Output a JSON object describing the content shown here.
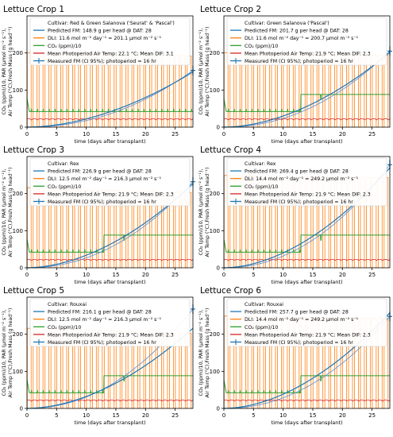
{
  "shared": {
    "xlabel": "time (days after transplant)",
    "ylabel_line1": "CO₂ (ppm)/10, PAR (μmol m⁻² s⁻¹),",
    "ylabel_line2": "Air Temp (°C),Fresh Mass (g head⁻¹)",
    "x_ticks": [
      "0",
      "5",
      "10",
      "15",
      "20",
      "25"
    ],
    "y_ticks": [
      "0",
      "100",
      "200"
    ],
    "colors": {
      "predicted": "#1f77b4",
      "par": "#ff7f0e",
      "co2": "#2ca02c",
      "temp": "#d62728",
      "measured": "#1f77b4"
    }
  },
  "chart_data": [
    {
      "type": "line",
      "title": "Lettuce Crop 1",
      "legend": [
        "Cultivar: Red & Green Salanova ('Seurat' & 'Pascal')",
        "Predicted FM: 148.9 g per head @ DAT: 28",
        "DLI: 11.6 mol m⁻² day⁻¹ = 201.1 μmol m⁻² s⁻¹",
        "CO₂ (ppm)/10",
        "Mean Photoperiod Air Temp: 22.1 °C; Mean DIF: 3.1",
        "Measured FM (CI 95%); photoperiod = 16 hr"
      ],
      "xlim": [
        0,
        28
      ],
      "ylim": [
        0,
        300
      ],
      "par_peak": [
        201,
        192
      ],
      "co2_base": 42,
      "co2_step": null,
      "temp": 21,
      "predicted_fm": 148.9,
      "measured": {
        "x": [
          28
        ],
        "y": [
          153
        ]
      }
    },
    {
      "type": "line",
      "title": "Lettuce Crop 2",
      "legend": [
        "Cultivar: Green Salanova ('Pascal')",
        "Predicted FM: 201.7 g per head @ DAT: 28",
        "DLI: 11.6 mol m⁻² day⁻¹ = 200.7 μmol m⁻² s⁻¹",
        "CO₂ (ppm)/10",
        "Mean Photoperiod Air Temp: 21.9 °C; Mean DIF: 2.3",
        "Measured FM (CI 95%); photoperiod = 16 hr"
      ],
      "xlim": [
        0,
        28
      ],
      "ylim": [
        0,
        300
      ],
      "par_peak": [
        201,
        194
      ],
      "co2_base": 42,
      "co2_step": [
        13,
        88
      ],
      "temp": 21,
      "predicted_fm": 201.7,
      "measured": {
        "x": [
          28
        ],
        "y": [
          205
        ]
      }
    },
    {
      "type": "line",
      "title": "Lettuce Crop 3",
      "legend": [
        "Cultivar: Rex",
        "Predicted FM: 226.9 g per head @ DAT: 28",
        "DLI: 12.5 mol m⁻² day⁻¹ = 216.3 μmol m⁻² s⁻¹",
        "CO₂ (ppm)/10",
        "Mean Photoperiod Air Temp: 21.9 °C; Mean DIF: 2.3",
        "Measured FM (CI 95%); photoperiod = 16 hr"
      ],
      "xlim": [
        0,
        28
      ],
      "ylim": [
        0,
        300
      ],
      "par_peak": [
        216,
        203
      ],
      "co2_base": 42,
      "co2_step": [
        13,
        88
      ],
      "temp": 21,
      "predicted_fm": 226.9,
      "measured": {
        "x": [
          28
        ],
        "y": [
          232
        ]
      }
    },
    {
      "type": "line",
      "title": "Lettuce Crop 4",
      "legend": [
        "Cultivar: Rex",
        "Predicted FM: 269.4 g per head @ DAT: 28",
        "DLI: 14.4 mol m⁻² day⁻¹ = 249.2 μmol m⁻² s⁻¹",
        "CO₂ (ppm)/10",
        "Mean Photoperiod Air Temp: 21.9 °C; Mean DIF: 2.3",
        "Measured FM (CI 95%); photoperiod = 16 hr"
      ],
      "xlim": [
        0,
        28
      ],
      "ylim": [
        0,
        300
      ],
      "par_peak": [
        249,
        243
      ],
      "co2_base": 42,
      "co2_step": [
        13,
        88
      ],
      "temp": 21,
      "predicted_fm": 269.4,
      "measured": {
        "x": [
          28
        ],
        "y": [
          278
        ]
      }
    },
    {
      "type": "line",
      "title": "Lettuce Crop 5",
      "legend": [
        "Cultivar: Rouxai",
        "Predicted FM: 216.1 g per head @ DAT: 28",
        "DLI: 12.5 mol m⁻² day⁻¹ = 216.3 μmol m⁻² s⁻¹",
        "CO₂ (ppm)/10",
        "Mean Photoperiod Air Temp: 21.9 °C; Mean DIF: 2.3",
        "Measured FM (CI 95%); photoperiod = 16 hr"
      ],
      "xlim": [
        0,
        28
      ],
      "ylim": [
        0,
        300
      ],
      "par_peak": [
        216,
        203
      ],
      "co2_base": 42,
      "co2_step": [
        13,
        88
      ],
      "temp": 21,
      "predicted_fm": 216.1,
      "measured": {
        "x": [
          28
        ],
        "y": [
          268
        ]
      }
    },
    {
      "type": "line",
      "title": "Lettuce Crop 6",
      "legend": [
        "Cultivar: Rouxai",
        "Predicted FM: 257.7 g per head @ DAT: 28",
        "DLI: 14.4 mol m⁻² day⁻¹ = 249.2 μmol m⁻² s⁻¹",
        "CO₂ (ppm)/10",
        "Mean Photoperiod Air Temp: 21.9 °C; Mean DIF: 2.3",
        "Measured FM (CI 95%); photoperiod = 16 hr"
      ],
      "xlim": [
        0,
        28
      ],
      "ylim": [
        0,
        300
      ],
      "par_peak": [
        249,
        243
      ],
      "co2_base": 42,
      "co2_step": [
        13,
        88
      ],
      "temp": 21,
      "predicted_fm": 257.7,
      "measured": {
        "x": [
          28
        ],
        "y": [
          248
        ]
      }
    }
  ]
}
